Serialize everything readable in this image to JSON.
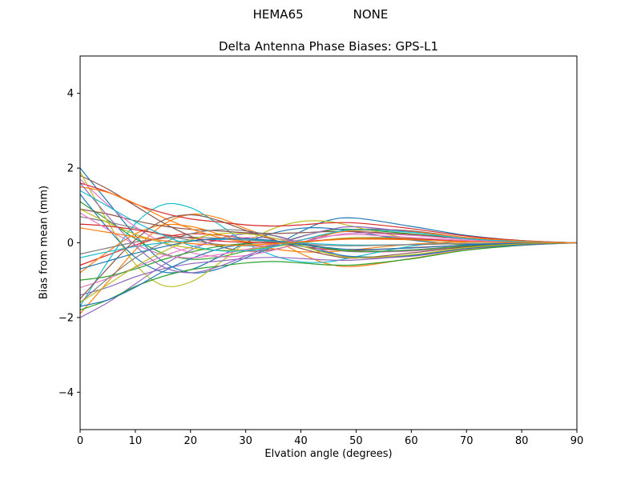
{
  "figure": {
    "suptitle": "HEMA65             NONE",
    "background": "#ffffff"
  },
  "chart_data": {
    "type": "line",
    "title": "Delta Antenna Phase Biases: GPS-L1",
    "xlabel": "Elvation angle (degrees)",
    "ylabel": "Bias from mean (mm)",
    "xlim": [
      0,
      90
    ],
    "ylim": [
      -5,
      5
    ],
    "xticks": [
      0,
      10,
      20,
      30,
      40,
      50,
      60,
      70,
      80,
      90
    ],
    "xtick_labels": [
      "0",
      "10",
      "20",
      "30",
      "40",
      "50",
      "60",
      "70",
      "80",
      "90"
    ],
    "yticks": [
      -4,
      -2,
      0,
      2,
      4
    ],
    "ytick_labels": [
      "−4",
      "−2",
      "0",
      "2",
      "4"
    ],
    "grid": false,
    "legend": null,
    "frame_color": "#000000",
    "colors": [
      "#1f77b4",
      "#ff7f0e",
      "#2ca02c",
      "#d62728",
      "#9467bd",
      "#8c564b",
      "#e377c2",
      "#7f7f7f",
      "#bcbd22",
      "#17becf"
    ],
    "x": [
      0,
      5,
      10,
      15,
      20,
      25,
      30,
      35,
      40,
      45,
      50,
      60,
      70,
      80,
      90
    ],
    "series": [
      [
        2.0,
        1.1,
        0.2,
        -0.5,
        -0.8,
        -0.7,
        -0.4,
        -0.1,
        0.3,
        0.6,
        0.66,
        0.44,
        0.2,
        0.06,
        0.0
      ],
      [
        -1.9,
        -1.05,
        -0.19,
        0.48,
        0.76,
        0.67,
        0.38,
        0.1,
        -0.29,
        -0.57,
        -0.63,
        -0.42,
        -0.19,
        -0.06,
        0.0
      ],
      [
        1.1,
        0.61,
        0.11,
        -0.28,
        -0.44,
        -0.39,
        -0.22,
        -0.06,
        0.17,
        0.33,
        0.36,
        0.24,
        0.11,
        0.03,
        0.0
      ],
      [
        -0.6,
        -0.33,
        -0.06,
        0.15,
        0.24,
        0.21,
        0.12,
        0.03,
        -0.09,
        -0.18,
        -0.2,
        -0.13,
        -0.06,
        -0.02,
        0.0
      ],
      [
        -2.0,
        -1.6,
        -1.1,
        -0.6,
        -0.2,
        0.1,
        0.24,
        0.2,
        0.0,
        -0.24,
        -0.4,
        -0.36,
        -0.16,
        -0.04,
        0.0
      ],
      [
        1.8,
        1.44,
        0.99,
        0.54,
        0.18,
        -0.09,
        -0.22,
        -0.18,
        0.0,
        0.22,
        0.36,
        0.32,
        0.14,
        0.04,
        0.0
      ],
      [
        -1.2,
        -0.96,
        -0.66,
        -0.36,
        -0.12,
        0.06,
        0.14,
        0.12,
        0.0,
        -0.14,
        -0.24,
        -0.22,
        -0.1,
        -0.02,
        0.0
      ],
      [
        0.7,
        0.56,
        0.39,
        0.21,
        0.07,
        -0.04,
        -0.08,
        -0.07,
        0.0,
        0.08,
        0.14,
        0.13,
        0.06,
        0.01,
        0.0
      ],
      [
        1.9,
        0.57,
        -0.57,
        -1.14,
        -1.05,
        -0.57,
        0.0,
        0.38,
        0.57,
        0.57,
        0.42,
        0.1,
        -0.06,
        -0.04,
        0.0
      ],
      [
        -1.7,
        -0.51,
        0.51,
        1.02,
        0.94,
        0.51,
        0.0,
        -0.34,
        -0.51,
        -0.51,
        -0.37,
        -0.09,
        0.05,
        0.03,
        0.0
      ],
      [
        1.3,
        0.39,
        -0.39,
        -0.78,
        -0.72,
        -0.39,
        0.0,
        0.26,
        0.39,
        0.39,
        0.29,
        0.07,
        -0.04,
        -0.03,
        0.0
      ],
      [
        -0.8,
        -0.24,
        0.24,
        0.48,
        0.44,
        0.24,
        0.0,
        -0.16,
        -0.24,
        -0.24,
        -0.18,
        -0.04,
        0.02,
        0.02,
        0.0
      ],
      [
        -1.8,
        -1.53,
        -1.17,
        -0.9,
        -0.72,
        -0.63,
        -0.54,
        -0.5,
        -0.54,
        -0.59,
        -0.59,
        -0.43,
        -0.2,
        -0.07,
        0.0
      ],
      [
        1.6,
        1.36,
        1.04,
        0.8,
        0.64,
        0.56,
        0.48,
        0.45,
        0.48,
        0.53,
        0.53,
        0.38,
        0.18,
        0.06,
        0.0
      ],
      [
        -1.4,
        -1.19,
        -0.91,
        -0.7,
        -0.56,
        -0.49,
        -0.42,
        -0.39,
        -0.42,
        -0.46,
        -0.46,
        -0.34,
        -0.15,
        -0.06,
        0.0
      ],
      [
        0.9,
        0.77,
        0.59,
        0.45,
        0.36,
        0.32,
        0.27,
        0.25,
        0.27,
        0.3,
        0.3,
        0.22,
        0.1,
        0.04,
        0.0
      ],
      [
        1.7,
        1.02,
        0.43,
        0.0,
        -0.26,
        -0.37,
        -0.34,
        -0.2,
        0.0,
        0.17,
        0.26,
        0.2,
        0.09,
        0.03,
        0.0
      ],
      [
        -1.6,
        -0.96,
        -0.4,
        0.0,
        0.24,
        0.35,
        0.32,
        0.19,
        0.0,
        -0.16,
        -0.24,
        -0.19,
        -0.08,
        -0.03,
        0.0
      ],
      [
        0.9,
        0.54,
        0.23,
        0.0,
        -0.14,
        -0.2,
        -0.18,
        -0.11,
        0.0,
        0.09,
        0.14,
        0.11,
        0.05,
        0.02,
        0.0
      ],
      [
        -0.4,
        -0.24,
        -0.1,
        0.0,
        0.06,
        0.09,
        0.08,
        0.05,
        0.0,
        -0.04,
        -0.06,
        -0.05,
        -0.02,
        -0.01,
        0.0
      ],
      [
        -1.7,
        -1.53,
        -1.19,
        -0.77,
        -0.43,
        -0.17,
        -0.03,
        0.0,
        -0.09,
        -0.26,
        -0.37,
        -0.34,
        -0.15,
        -0.05,
        0.0
      ],
      [
        1.5,
        1.35,
        1.05,
        0.68,
        0.38,
        0.15,
        0.03,
        0.0,
        0.08,
        0.23,
        0.33,
        0.3,
        0.14,
        0.05,
        0.0
      ],
      [
        -1.0,
        -0.9,
        -0.7,
        -0.45,
        -0.25,
        -0.1,
        -0.02,
        0.0,
        -0.05,
        -0.15,
        -0.22,
        -0.2,
        -0.09,
        -0.03,
        0.0
      ],
      [
        0.5,
        0.45,
        0.35,
        0.23,
        0.13,
        0.05,
        0.01,
        0.0,
        0.03,
        0.08,
        0.11,
        0.1,
        0.05,
        0.02,
        0.0
      ],
      [
        1.6,
        0.72,
        -0.08,
        -0.64,
        -0.8,
        -0.64,
        -0.35,
        -0.08,
        0.16,
        0.35,
        0.43,
        0.29,
        0.11,
        0.03,
        0.0
      ],
      [
        -1.5,
        -0.68,
        0.08,
        0.6,
        0.75,
        0.6,
        0.33,
        0.08,
        -0.15,
        -0.33,
        -0.41,
        -0.27,
        -0.11,
        -0.03,
        0.0
      ],
      [
        0.8,
        0.36,
        -0.04,
        -0.32,
        -0.4,
        -0.32,
        -0.18,
        -0.04,
        0.08,
        0.18,
        0.22,
        0.14,
        0.06,
        0.02,
        0.0
      ],
      [
        -0.3,
        -0.14,
        0.02,
        0.12,
        0.15,
        0.12,
        0.07,
        0.02,
        -0.03,
        -0.07,
        -0.08,
        -0.05,
        -0.02,
        -0.01,
        0.0
      ],
      [
        -1.6,
        -1.12,
        -0.64,
        -0.24,
        0.08,
        0.24,
        0.24,
        0.13,
        -0.08,
        -0.29,
        -0.4,
        -0.32,
        -0.13,
        -0.03,
        0.0
      ],
      [
        1.4,
        0.98,
        0.56,
        0.21,
        -0.07,
        -0.21,
        -0.21,
        -0.11,
        0.07,
        0.25,
        0.35,
        0.28,
        0.11,
        0.03,
        0.0
      ],
      [
        -0.7,
        -0.49,
        -0.28,
        -0.11,
        0.04,
        0.11,
        0.11,
        0.06,
        -0.04,
        -0.13,
        -0.18,
        -0.14,
        -0.06,
        -0.01,
        0.0
      ],
      [
        0.4,
        0.28,
        0.16,
        0.06,
        -0.02,
        -0.06,
        -0.06,
        -0.03,
        0.02,
        0.07,
        0.1,
        0.08,
        0.03,
        0.01,
        0.0
      ]
    ]
  }
}
